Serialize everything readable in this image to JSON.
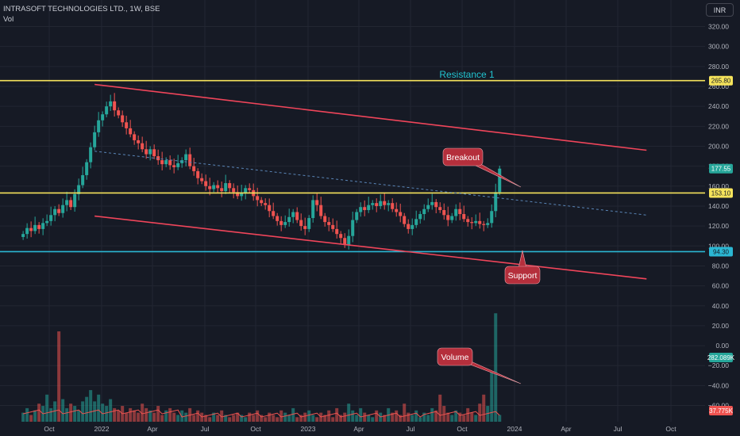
{
  "header": {
    "title": "INTRASOFT TECHNOLOGIES LTD., 1W, BSE",
    "volume_label": "Vol"
  },
  "currency": "INR",
  "colors": {
    "background": "#161a25",
    "up": "#26a69a",
    "down": "#ef5350",
    "volume_ma": "#ef5350",
    "horizontal_line": "#f5e35b",
    "support_line": "#2bb7d3",
    "channel": "#f0455a",
    "trendline": "#5a86b8",
    "callout": "#b52f3c",
    "resistance_text": "#22c3cf"
  },
  "chart_data": {
    "type": "candlestick",
    "x_ticks": [
      "Oct",
      "2022",
      "Apr",
      "Jul",
      "Oct",
      "2023",
      "Apr",
      "Jul",
      "Oct",
      "2024",
      "Apr",
      "Jul",
      "Oct"
    ],
    "price_axis": {
      "ticks": [
        320,
        300,
        280,
        260,
        240,
        220,
        200,
        180,
        160,
        140,
        120,
        100,
        80,
        60,
        40,
        20,
        0,
        -20,
        -40,
        -60
      ],
      "tick_labels": [
        "320.00",
        "300.00",
        "280.00",
        "260.00",
        "240.00",
        "220.00",
        "200.00",
        "180.00",
        "160.00",
        "140.00",
        "120.00",
        "100.00",
        "80.00",
        "60.00",
        "40.00",
        "20.00",
        "0.00",
        "−20.00",
        "−40.00",
        "−60.00"
      ]
    },
    "price_badges": [
      {
        "label": "265.80",
        "value": 265.8,
        "style": "yellow"
      },
      {
        "label": "177.55",
        "value": 177.55,
        "style": "green"
      },
      {
        "label": "153.10",
        "value": 153.1,
        "style": "yellow"
      },
      {
        "label": "94.30",
        "value": 94.3,
        "style": "cyan"
      },
      {
        "label": "282.089K",
        "value": 282089,
        "style": "green-volume"
      },
      {
        "label": "37.775K",
        "value": 37775,
        "style": "red-volume"
      }
    ],
    "horizontal_lines": [
      {
        "name": "Resistance 1",
        "price": 265.8
      },
      {
        "name": "breakout-level",
        "price": 153.1
      },
      {
        "name": "support-level",
        "price": 94.3
      }
    ],
    "channel": {
      "upper": [
        {
          "date": "2021-12-20",
          "price": 262
        },
        {
          "date": "2024-08-19",
          "price": 196
        }
      ],
      "lower": [
        {
          "date": "2021-12-20",
          "price": 130
        },
        {
          "date": "2024-08-19",
          "price": 67
        }
      ]
    },
    "trendline": [
      {
        "date": "2021-12-20",
        "price": 195
      },
      {
        "date": "2024-08-19",
        "price": 131
      }
    ],
    "annotations": {
      "resistance": "Resistance 1",
      "breakout": "Breakout",
      "support": "Support",
      "volume": "Volume"
    },
    "last_close": 177.55,
    "last_volume": "282.089K",
    "volume_ma_last": "37.775K"
  }
}
